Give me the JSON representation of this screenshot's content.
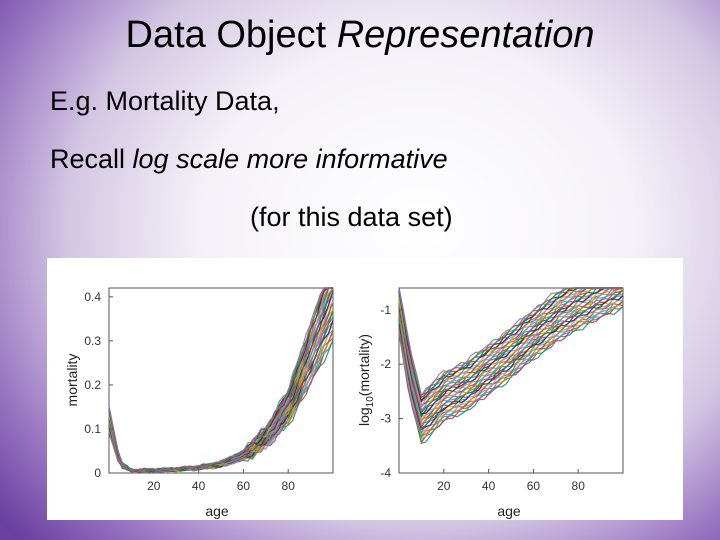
{
  "slide": {
    "title_main": "Data Object ",
    "title_italic": "Representation",
    "line1": "E.g. Mortality Data,",
    "line2_prefix": "Recall ",
    "line2_italic": "log scale more informative",
    "line3": "(for this data set)"
  },
  "chart_data": [
    {
      "type": "line",
      "title": "",
      "xlabel": "age",
      "ylabel": "mortality",
      "xlim": [
        0,
        100
      ],
      "ylim": [
        0,
        0.42
      ],
      "xticks": [
        "20",
        "40",
        "60",
        "80"
      ],
      "yticks": [
        "0",
        "0.1",
        "0.2",
        "0.3",
        "0.4"
      ],
      "series_description_count": 40,
      "representative_curve": {
        "x": [
          0,
          5,
          10,
          20,
          30,
          40,
          50,
          60,
          70,
          80,
          90,
          100
        ],
        "y": [
          0.12,
          0.02,
          0.005,
          0.006,
          0.008,
          0.012,
          0.02,
          0.04,
          0.08,
          0.15,
          0.27,
          0.4
        ]
      }
    },
    {
      "type": "line",
      "title": "",
      "xlabel": "age",
      "ylabel_main": "log",
      "ylabel_sub": "10",
      "ylabel_rest": "(mortality)",
      "xlim": [
        0,
        100
      ],
      "ylim": [
        -4,
        -0.6
      ],
      "xticks": [
        "20",
        "40",
        "60",
        "80"
      ],
      "yticks": [
        "-1",
        "-2",
        "-3",
        "-4"
      ],
      "representative_curve": {
        "x": [
          0,
          5,
          10,
          20,
          30,
          40,
          50,
          60,
          70,
          80,
          90,
          100
        ],
        "y": [
          -1.0,
          -2.2,
          -3.0,
          -2.6,
          -2.4,
          -2.1,
          -1.8,
          -1.45,
          -1.15,
          -0.9,
          -0.7,
          -0.5
        ]
      }
    }
  ],
  "colors": {
    "series": [
      "#1f77b4",
      "#d62728",
      "#2ca02c",
      "#9467bd",
      "#ff7f0e",
      "#17becf",
      "#8c564b",
      "#e377c2",
      "#bcbd22",
      "#7f7f7f",
      "#4b0082",
      "#006400"
    ]
  }
}
